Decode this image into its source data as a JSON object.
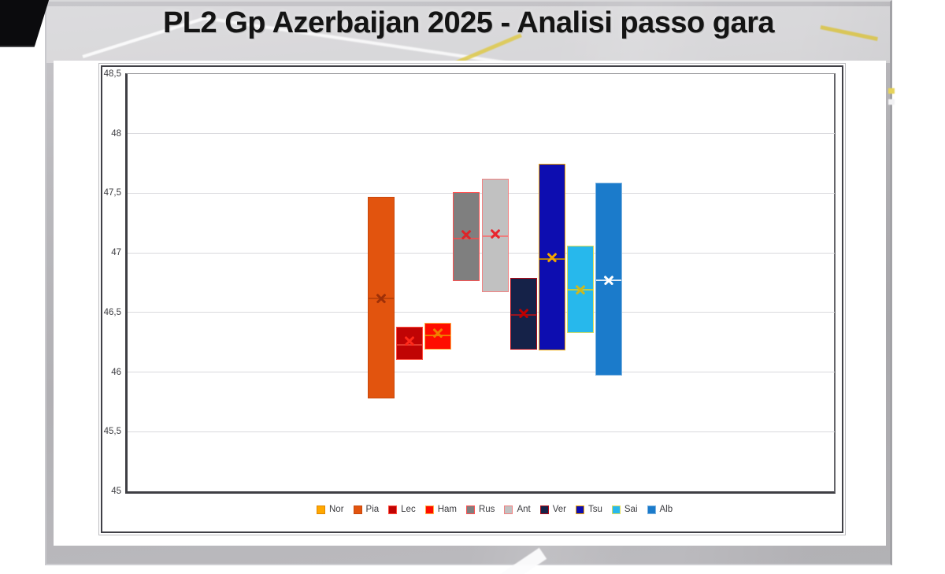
{
  "title": "PL2 Gp Azerbaijan 2025 - Analisi passo gara",
  "chart_data": {
    "type": "boxplot",
    "title": "PL2 Gp Azerbaijan 2025 - Analisi passo gara",
    "xlabel": "",
    "ylabel": "",
    "ylim": [
      45,
      48.5
    ],
    "ytick_labels": [
      "48,5",
      "48",
      "47,5",
      "47",
      "46,5",
      "46",
      "45,5",
      "45"
    ],
    "ytick_values": [
      48.5,
      48,
      47.5,
      47,
      46.5,
      46,
      45.5,
      45
    ],
    "decimal_separator": ",",
    "grid": true,
    "x_axis_labels_visible": false,
    "legend_position": "bottom",
    "units": "seconds (lap time)",
    "series": [
      {
        "name": "Nor",
        "fill": "#FFA800",
        "border": "#E08600",
        "marker_color": "#E08600",
        "median_color": null,
        "low": null,
        "high": null,
        "mean": null,
        "median": null
      },
      {
        "name": "Pia",
        "fill": "#E2540E",
        "border": "#C8470B",
        "marker_color": "#9E3008",
        "median_color": "#BA4109",
        "low": 45.78,
        "high": 47.47,
        "mean": 46.62,
        "median": 46.62
      },
      {
        "name": "Lec",
        "fill": "#C00404",
        "border": "#FF4A3C",
        "marker_color": "#FF2A1A",
        "median_color": "#E63B2E",
        "low": 46.1,
        "high": 46.38,
        "mean": 46.26,
        "median": 46.23
      },
      {
        "name": "Ham",
        "fill": "#FE0D00",
        "border": "#FFB143",
        "marker_color": "#F07F00",
        "median_color": "#F07F00",
        "low": 46.19,
        "high": 46.41,
        "mean": 46.33,
        "median": 46.31
      },
      {
        "name": "Rus",
        "fill": "#7F7F7F",
        "border": "#FF5050",
        "marker_color": "#DE2428",
        "median_color": "#E25555",
        "low": 46.76,
        "high": 47.51,
        "mean": 47.15,
        "median": 47.12
      },
      {
        "name": "Ant",
        "fill": "#C1C1C1",
        "border": "#F28080",
        "marker_color": "#E8242C",
        "median_color": "#EE7A7A",
        "low": 46.67,
        "high": 47.62,
        "mean": 47.16,
        "median": 47.14
      },
      {
        "name": "Ver",
        "fill": "#152248",
        "border": "#AD0A18",
        "marker_color": "#C00000",
        "median_color": "#9E1520",
        "low": 46.19,
        "high": 46.79,
        "mean": 46.49,
        "median": 46.48
      },
      {
        "name": "Tsu",
        "fill": "#0D0DB0",
        "border": "#F2A900",
        "marker_color": "#F0A400",
        "median_color": "#B8860B",
        "low": 46.18,
        "high": 47.75,
        "mean": 46.96,
        "median": 46.95
      },
      {
        "name": "Sai",
        "fill": "#27B8EC",
        "border": "#E2DE55",
        "marker_color": "#CBB820",
        "median_color": "#C3CC40",
        "low": 46.33,
        "high": 47.06,
        "mean": 46.69,
        "median": 46.69
      },
      {
        "name": "Alb",
        "fill": "#1B7BCB",
        "border": "#7EB3E0",
        "marker_color": "#FFFFFF",
        "median_color": "#E8F0F8",
        "low": 45.97,
        "high": 47.59,
        "mean": 46.77,
        "median": 46.77
      }
    ]
  }
}
